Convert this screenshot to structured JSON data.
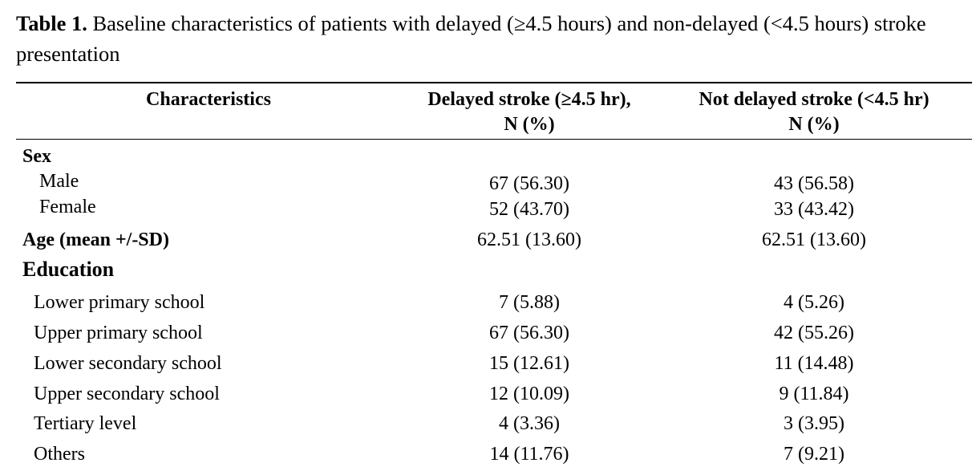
{
  "caption": {
    "label": "Table 1.",
    "text": " Baseline characteristics of patients with delayed (≥4.5 hours) and non-delayed (<4.5 hours) stroke presentation"
  },
  "table": {
    "headers": {
      "characteristics": "Characteristics",
      "delayed_line1": "Delayed stroke (≥4.5 hr),",
      "delayed_line2": "N (%)",
      "notdelayed_line1": "Not delayed stroke (<4.5 hr)",
      "notdelayed_line2": "N (%)"
    },
    "rows": [
      {
        "label": "Sex",
        "delayed": "",
        "notdelayed": ""
      },
      {
        "label": "Male",
        "delayed": "67 (56.30)",
        "notdelayed": "43 (56.58)"
      },
      {
        "label": "Female",
        "delayed": "52 (43.70)",
        "notdelayed": "33 (43.42)"
      },
      {
        "label": "Age (mean +/-SD)",
        "delayed": "62.51 (13.60)",
        "notdelayed": "62.51 (13.60)"
      },
      {
        "label": "Education",
        "delayed": "",
        "notdelayed": ""
      },
      {
        "label": "Lower primary school",
        "delayed": "7 (5.88)",
        "notdelayed": "4 (5.26)"
      },
      {
        "label": "Upper primary school",
        "delayed": "67 (56.30)",
        "notdelayed": "42 (55.26)"
      },
      {
        "label": "Lower secondary school",
        "delayed": "15 (12.61)",
        "notdelayed": "11 (14.48)"
      },
      {
        "label": "Upper secondary school",
        "delayed": "12 (10.09)",
        "notdelayed": "9 (11.84)"
      },
      {
        "label": "Tertiary level",
        "delayed": "4 (3.36)",
        "notdelayed": "3 (3.95)"
      },
      {
        "label": "Others",
        "delayed": "14 (11.76)",
        "notdelayed": "7 (9.21)"
      }
    ]
  }
}
